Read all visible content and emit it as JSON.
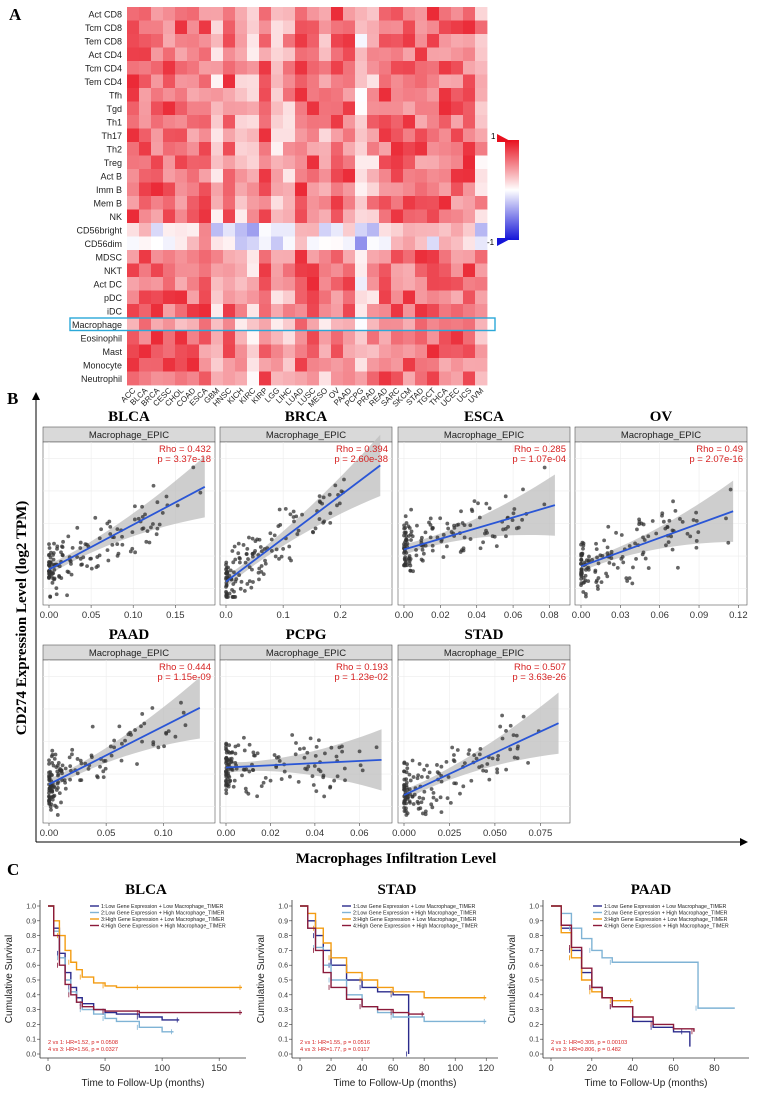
{
  "panel_labels": {
    "a": "A",
    "b": "B",
    "c": "C"
  },
  "chart_data": [
    {
      "type": "heatmap",
      "panel": "A",
      "rows": [
        "Act CD8",
        "Tcm CD8",
        "Tem CD8",
        "Act CD4",
        "Tcm CD4",
        "Tem CD4",
        "Tfh",
        "Tgd",
        "Th1",
        "Th17",
        "Th2",
        "Treg",
        "Act B",
        "Imm B",
        "Mem B",
        "NK",
        "CD56bright",
        "CD56dim",
        "MDSC",
        "NKT",
        "Act DC",
        "pDC",
        "iDC",
        "Macrophage",
        "Eosinophil",
        "Mast",
        "Monocyte",
        "Neutrophil"
      ],
      "columns": [
        "ACC",
        "BLCA",
        "BRCA",
        "CESC",
        "CHOL",
        "COAD",
        "ESCA",
        "GBM",
        "HNSC",
        "KICH",
        "KIRC",
        "KIRP",
        "LGG",
        "LIHC",
        "LUAD",
        "LUSC",
        "MESO",
        "OV",
        "PAAD",
        "PCPG",
        "PRAD",
        "READ",
        "SARC",
        "SKCM",
        "STAD",
        "TGCT",
        "THCA",
        "UCEC",
        "UCS",
        "UVM"
      ],
      "highlight_row": "Macrophage",
      "colorbar": {
        "max_label": "1",
        "min_label": "-1",
        "high_color": "#e8101e",
        "mid_color": "#ffffff",
        "low_color": "#1515d8"
      }
    },
    {
      "type": "scatter",
      "panel": "B",
      "ylabel": "CD274 Expression Level (log2 TPM)",
      "xlabel": "Macrophages Infiltration Level",
      "facets": [
        {
          "title": "BLCA",
          "strip": "Macrophage_EPIC",
          "rho": "Rho = 0.432",
          "p": "p = 3.37e-18",
          "xlim": [
            0,
            0.19
          ],
          "ticks": [
            "0.00",
            "0.05",
            "0.10",
            "0.15"
          ],
          "tick_values": [
            0,
            0.05,
            0.1,
            0.15
          ],
          "fit": [
            [
              0.0,
              0.2
            ],
            [
              0.185,
              0.74
            ]
          ]
        },
        {
          "title": "BRCA",
          "strip": "Macrophage_EPIC",
          "rho": "Rho = 0.394",
          "p": "p = 2.60e-38",
          "xlim": [
            0,
            0.28
          ],
          "ticks": [
            "0.0",
            "0.1",
            "0.2"
          ],
          "tick_values": [
            0,
            0.1,
            0.2
          ],
          "fit": [
            [
              0.0,
              0.12
            ],
            [
              0.27,
              0.88
            ]
          ]
        },
        {
          "title": "ESCA",
          "strip": "Macrophage_EPIC",
          "rho": "Rho = 0.285",
          "p": "p = 1.07e-04",
          "xlim": [
            0,
            0.088
          ],
          "ticks": [
            "0.00",
            "0.02",
            "0.04",
            "0.06",
            "0.08"
          ],
          "tick_values": [
            0,
            0.02,
            0.04,
            0.06,
            0.08
          ],
          "fit": [
            [
              0.0,
              0.33
            ],
            [
              0.083,
              0.62
            ]
          ]
        },
        {
          "title": "OV",
          "strip": "Macrophage_EPIC",
          "rho": "Rho = 0.49",
          "p": "p = 2.07e-16",
          "xlim": [
            0,
            0.122
          ],
          "ticks": [
            "0.00",
            "0.03",
            "0.06",
            "0.09",
            "0.12"
          ],
          "tick_values": [
            0,
            0.03,
            0.06,
            0.09,
            0.12
          ],
          "fit": [
            [
              0.0,
              0.22
            ],
            [
              0.116,
              0.58
            ]
          ]
        },
        {
          "title": "PAAD",
          "strip": "Macrophage_EPIC",
          "rho": "Rho = 0.444",
          "p": "p = 1.15e-09",
          "xlim": [
            0,
            0.14
          ],
          "ticks": [
            "0.00",
            "0.05",
            "0.10"
          ],
          "tick_values": [
            0,
            0.05,
            0.1
          ],
          "fit": [
            [
              0.0,
              0.22
            ],
            [
              0.132,
              0.72
            ]
          ]
        },
        {
          "title": "PCPG",
          "strip": "Macrophage_EPIC",
          "rho": "Rho = 0.193",
          "p": "p = 1.23e-02",
          "xlim": [
            0,
            0.072
          ],
          "ticks": [
            "0.00",
            "0.02",
            "0.04",
            "0.06"
          ],
          "tick_values": [
            0,
            0.02,
            0.04,
            0.06
          ],
          "fit": [
            [
              0.0,
              0.33
            ],
            [
              0.07,
              0.38
            ]
          ]
        },
        {
          "title": "STAD",
          "strip": "Macrophage_EPIC",
          "rho": "Rho = 0.507",
          "p": "p = 3.63e-26",
          "xlim": [
            0,
            0.088
          ],
          "ticks": [
            "0.000",
            "0.025",
            "0.050",
            "0.075"
          ],
          "tick_values": [
            0,
            0.025,
            0.05,
            0.075
          ],
          "fit": [
            [
              0.0,
              0.15
            ],
            [
              0.085,
              0.62
            ]
          ]
        }
      ]
    },
    {
      "type": "line",
      "panel": "C",
      "ylabel": "Cumulative Survival",
      "xlabel": "Time to Follow-Up (months)",
      "legend": [
        {
          "label": "1:Low Gene Expression + Low Macrophage_TIMER",
          "color": "#2b2b8c"
        },
        {
          "label": "2:Low Gene Expression + High Macrophage_TIMER",
          "color": "#7fb3d5"
        },
        {
          "label": "3:High Gene Expression + Low Macrophage_TIMER",
          "color": "#f39c12"
        },
        {
          "label": "4:High Gene Expression + High Macrophage_TIMER",
          "color": "#8b1a3a"
        }
      ],
      "yticks": [
        "0.0",
        "0.1",
        "0.2",
        "0.3",
        "0.4",
        "0.5",
        "0.6",
        "0.7",
        "0.8",
        "0.9",
        "1.0"
      ],
      "plots": [
        {
          "title": "BLCA",
          "xmax": 170,
          "xticks": [
            0,
            50,
            100,
            150
          ],
          "stats": [
            "2 vs 1: HR=1.52, p = 0.0508",
            "4 vs 3: HR=1.56, p = 0.0327"
          ],
          "curves": [
            {
              "x": [
                0,
                5,
                10,
                15,
                20,
                25,
                30,
                40,
                50,
                60,
                80,
                100,
                115
              ],
              "y": [
                1,
                0.85,
                0.68,
                0.55,
                0.45,
                0.38,
                0.34,
                0.3,
                0.28,
                0.27,
                0.25,
                0.23,
                0.23
              ]
            },
            {
              "x": [
                0,
                5,
                10,
                15,
                20,
                25,
                30,
                40,
                50,
                60,
                80,
                100,
                110
              ],
              "y": [
                1,
                0.83,
                0.65,
                0.5,
                0.42,
                0.35,
                0.3,
                0.27,
                0.24,
                0.22,
                0.18,
                0.15,
                0.15
              ]
            },
            {
              "x": [
                0,
                5,
                10,
                15,
                20,
                25,
                30,
                40,
                50,
                60,
                80,
                120,
                170
              ],
              "y": [
                1,
                0.9,
                0.8,
                0.7,
                0.62,
                0.57,
                0.52,
                0.48,
                0.46,
                0.45,
                0.45,
                0.45,
                0.45
              ]
            },
            {
              "x": [
                0,
                5,
                10,
                15,
                20,
                25,
                30,
                40,
                50,
                60,
                80,
                120,
                170
              ],
              "y": [
                1,
                0.8,
                0.6,
                0.47,
                0.4,
                0.35,
                0.32,
                0.3,
                0.29,
                0.29,
                0.28,
                0.28,
                0.28
              ]
            }
          ]
        },
        {
          "title": "STAD",
          "xmax": 125,
          "xticks": [
            0,
            20,
            40,
            60,
            80,
            100,
            120
          ],
          "stats": [
            "2 vs 1: HR=1.55, p = 0.0516",
            "4 vs 3: HR=1.77, p = 0.0117"
          ],
          "curves": [
            {
              "x": [
                0,
                5,
                10,
                15,
                20,
                30,
                40,
                50,
                60,
                66,
                70
              ],
              "y": [
                1,
                0.9,
                0.8,
                0.7,
                0.6,
                0.5,
                0.45,
                0.42,
                0.4,
                0.4,
                0.0
              ]
            },
            {
              "x": [
                0,
                5,
                10,
                15,
                20,
                30,
                40,
                50,
                60,
                80,
                120
              ],
              "y": [
                1,
                0.85,
                0.72,
                0.6,
                0.5,
                0.4,
                0.32,
                0.28,
                0.25,
                0.22,
                0.22
              ]
            },
            {
              "x": [
                0,
                5,
                10,
                15,
                20,
                30,
                40,
                50,
                60,
                80,
                120
              ],
              "y": [
                1,
                0.95,
                0.85,
                0.75,
                0.65,
                0.55,
                0.5,
                0.45,
                0.42,
                0.38,
                0.38
              ]
            },
            {
              "x": [
                0,
                5,
                10,
                15,
                20,
                30,
                40,
                50,
                60,
                70,
                80
              ],
              "y": [
                1,
                0.85,
                0.7,
                0.55,
                0.45,
                0.37,
                0.32,
                0.3,
                0.28,
                0.27,
                0.27
              ]
            }
          ]
        },
        {
          "title": "PAAD",
          "xmax": 95,
          "xticks": [
            0,
            20,
            40,
            60,
            80
          ],
          "stats": [
            "2 vs 1: HR=0.305, p = 0.00103",
            "4 vs 3: HR=0.806, p = 0.482"
          ],
          "curves": [
            {
              "x": [
                0,
                5,
                10,
                15,
                20,
                25,
                30,
                40,
                50,
                60,
                65,
                68
              ],
              "y": [
                1,
                0.85,
                0.7,
                0.55,
                0.45,
                0.38,
                0.32,
                0.22,
                0.18,
                0.15,
                0.15,
                0.05
              ]
            },
            {
              "x": [
                0,
                5,
                10,
                15,
                20,
                25,
                30,
                70,
                72,
                90
              ],
              "y": [
                1,
                0.95,
                0.85,
                0.78,
                0.7,
                0.65,
                0.62,
                0.62,
                0.31,
                0.31
              ]
            },
            {
              "x": [
                0,
                5,
                10,
                15,
                20,
                25,
                30,
                35,
                40
              ],
              "y": [
                1,
                0.82,
                0.65,
                0.5,
                0.42,
                0.38,
                0.36,
                0.36,
                0.36
              ]
            },
            {
              "x": [
                0,
                5,
                10,
                15,
                20,
                25,
                30,
                40,
                50,
                60,
                70
              ],
              "y": [
                1,
                0.87,
                0.72,
                0.58,
                0.45,
                0.38,
                0.32,
                0.25,
                0.2,
                0.17,
                0.15
              ]
            }
          ]
        }
      ]
    }
  ]
}
